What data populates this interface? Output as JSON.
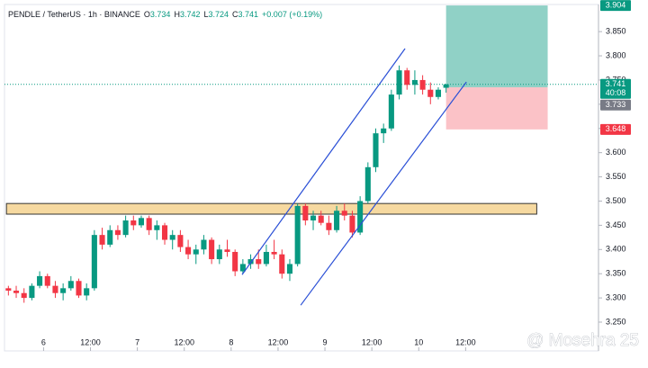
{
  "chart_data": {
    "type": "candlestick",
    "header": {
      "symbol": "PENDLE / TetherUS · 1h · BINANCE",
      "ohlc": [
        {
          "label": "O",
          "value": 3.734
        },
        {
          "label": "H",
          "value": 3.742
        },
        {
          "label": "L",
          "value": 3.724
        },
        {
          "label": "C",
          "value": 3.741
        }
      ],
      "change": "+0.007 (+0.19%)"
    },
    "up_color": "#089981",
    "down_color": "#f23645",
    "x": [
      -9,
      -7,
      -5,
      -3,
      -1,
      1,
      3,
      5,
      7,
      9,
      11,
      13,
      15,
      17,
      19,
      21,
      23,
      25,
      27,
      29,
      31,
      33,
      35,
      37,
      39,
      41,
      43,
      45,
      47,
      49,
      51,
      53,
      55,
      57,
      59,
      61,
      63,
      65,
      67,
      69,
      71,
      73,
      75,
      77,
      79,
      81,
      83,
      85,
      87,
      89,
      91,
      93,
      95,
      97,
      99,
      101,
      103
    ],
    "open": [
      3.32,
      3.315,
      3.31,
      3.3,
      3.325,
      3.345,
      3.325,
      3.31,
      3.32,
      3.335,
      3.305,
      3.32,
      3.43,
      3.41,
      3.44,
      3.43,
      3.46,
      3.45,
      3.465,
      3.44,
      3.45,
      3.42,
      3.43,
      3.405,
      3.39,
      3.4,
      3.42,
      3.38,
      3.4,
      3.395,
      3.355,
      3.37,
      3.38,
      3.37,
      3.395,
      3.39,
      3.35,
      3.37,
      3.49,
      3.46,
      3.47,
      3.455,
      3.44,
      3.48,
      3.47,
      3.435,
      3.5,
      3.57,
      3.64,
      3.65,
      3.72,
      3.77,
      3.74,
      3.75,
      3.73,
      3.715,
      3.734
    ],
    "high": [
      3.325,
      3.325,
      3.32,
      3.33,
      3.355,
      3.35,
      3.335,
      3.33,
      3.345,
      3.34,
      3.33,
      3.44,
      3.445,
      3.45,
      3.45,
      3.47,
      3.47,
      3.47,
      3.47,
      3.46,
      3.455,
      3.44,
      3.44,
      3.42,
      3.41,
      3.43,
      3.425,
      3.41,
      3.42,
      3.4,
      3.38,
      3.39,
      3.4,
      3.41,
      3.42,
      3.4,
      3.38,
      3.495,
      3.495,
      3.48,
      3.48,
      3.47,
      3.49,
      3.495,
      3.48,
      3.51,
      3.58,
      3.65,
      3.66,
      3.73,
      3.78,
      3.775,
      3.77,
      3.76,
      3.745,
      3.735,
      3.742
    ],
    "low": [
      3.305,
      3.3,
      3.29,
      3.295,
      3.32,
      3.32,
      3.3,
      3.295,
      3.315,
      3.3,
      3.295,
      3.315,
      3.4,
      3.405,
      3.42,
      3.425,
      3.44,
      3.445,
      3.43,
      3.42,
      3.41,
      3.4,
      3.395,
      3.38,
      3.37,
      3.39,
      3.37,
      3.37,
      3.385,
      3.345,
      3.35,
      3.36,
      3.36,
      3.365,
      3.38,
      3.34,
      3.335,
      3.365,
      3.45,
      3.44,
      3.45,
      3.43,
      3.435,
      3.46,
      3.425,
      3.43,
      3.495,
      3.56,
      3.62,
      3.645,
      3.71,
      3.73,
      3.72,
      3.72,
      3.7,
      3.71,
      3.724
    ],
    "close": [
      3.315,
      3.31,
      3.3,
      3.325,
      3.345,
      3.325,
      3.31,
      3.32,
      3.335,
      3.305,
      3.32,
      3.43,
      3.41,
      3.44,
      3.43,
      3.46,
      3.45,
      3.465,
      3.44,
      3.45,
      3.42,
      3.43,
      3.405,
      3.39,
      3.4,
      3.42,
      3.38,
      3.4,
      3.395,
      3.355,
      3.37,
      3.38,
      3.37,
      3.395,
      3.39,
      3.35,
      3.37,
      3.49,
      3.46,
      3.47,
      3.455,
      3.44,
      3.48,
      3.47,
      3.435,
      3.5,
      3.57,
      3.64,
      3.65,
      3.72,
      3.77,
      3.74,
      3.75,
      3.73,
      3.715,
      3.73,
      3.741
    ],
    "xlim": [
      -10,
      142
    ],
    "xticks": [
      {
        "value": 0,
        "label": "6"
      },
      {
        "value": 12,
        "label": "12:00"
      },
      {
        "value": 24,
        "label": "7"
      },
      {
        "value": 36,
        "label": "12:00"
      },
      {
        "value": 48,
        "label": "8"
      },
      {
        "value": 60,
        "label": "12:00"
      },
      {
        "value": 72,
        "label": "9"
      },
      {
        "value": 84,
        "label": "12:00"
      },
      {
        "value": 96,
        "label": "10"
      },
      {
        "value": 108,
        "label": "12:00"
      }
    ],
    "ylim": [
      3.224,
      3.906
    ],
    "yticks": [
      {
        "value": 3.25,
        "label": "3.250"
      },
      {
        "value": 3.3,
        "label": "3.300"
      },
      {
        "value": 3.35,
        "label": "3.350"
      },
      {
        "value": 3.4,
        "label": "3.400"
      },
      {
        "value": 3.45,
        "label": "3.450"
      },
      {
        "value": 3.5,
        "label": "3.500"
      },
      {
        "value": 3.55,
        "label": "3.550"
      },
      {
        "value": 3.6,
        "label": "3.600"
      },
      {
        "value": 3.65,
        "label": "3.650"
      },
      {
        "value": 3.7,
        "label": "3.700"
      },
      {
        "value": 3.75,
        "label": "3.750"
      },
      {
        "value": 3.8,
        "label": "3.800"
      },
      {
        "value": 3.85,
        "label": "3.850"
      }
    ],
    "zone": {
      "x": [
        -9.5,
        126.2
      ],
      "low": 3.473,
      "high": 3.495,
      "color": "#f6d9a0"
    },
    "channel": {
      "color": "#2a4fd6",
      "lines": [
        {
          "x": [
            50.8,
            92.5
          ],
          "y": [
            3.348,
            3.815
          ]
        },
        {
          "x": [
            65.8,
            108.2
          ],
          "y": [
            3.285,
            3.746
          ]
        }
      ]
    },
    "position": {
      "x": [
        103,
        129
      ],
      "target": 3.904,
      "entry": 3.735,
      "stop": 3.648
    },
    "price_labels": [
      {
        "value": 3.904,
        "label": "3.904",
        "color": "#089981"
      },
      {
        "value": 3.741,
        "label": "3.741",
        "color": "#089981",
        "countdown": "40:08"
      },
      {
        "value": 3.733,
        "label": "3.733",
        "color": "#787b86"
      },
      {
        "value": 3.648,
        "label": "3.648",
        "color": "#f23645"
      }
    ],
    "watermark": "@ Mosehra 25"
  }
}
